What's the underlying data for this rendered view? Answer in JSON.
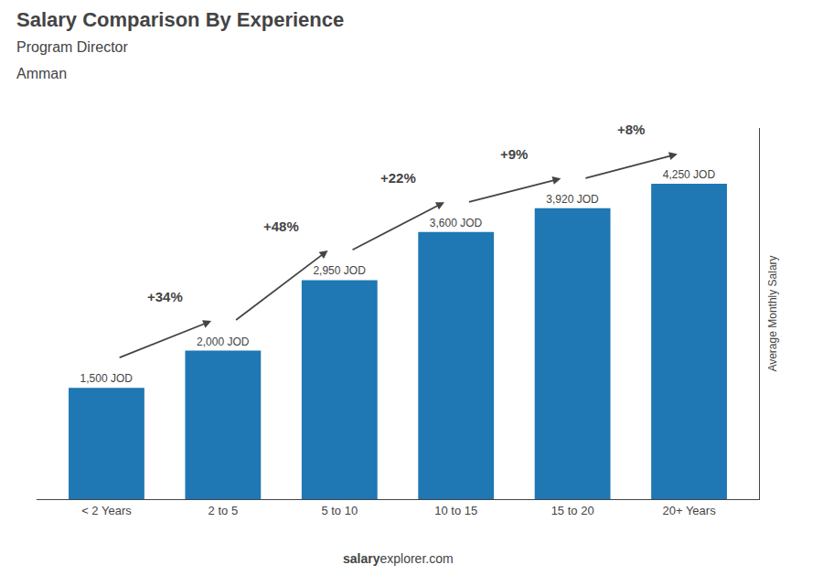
{
  "chart_data": {
    "type": "bar",
    "title": "Salary Comparison By Experience",
    "subtitle": [
      "Program Director",
      "Amman"
    ],
    "categories": [
      "< 2 Years",
      "2 to 5",
      "5 to 10",
      "10 to 15",
      "15 to 20",
      "20+ Years"
    ],
    "values": [
      1500,
      2000,
      2950,
      3600,
      3920,
      4250
    ],
    "value_labels": [
      "1,500 JOD",
      "2,000 JOD",
      "2,950 JOD",
      "3,600 JOD",
      "3,920 JOD",
      "4,250 JOD"
    ],
    "data_labels": true,
    "annotations": [
      "+34%",
      "+48%",
      "+22%",
      "+9%",
      "+8%"
    ],
    "ylabel": "Average Monthly Salary",
    "footer": [
      "salary",
      "explorer.com"
    ],
    "ylim": [
      0,
      5000
    ],
    "tick_labels": "x",
    "grid": false
  }
}
